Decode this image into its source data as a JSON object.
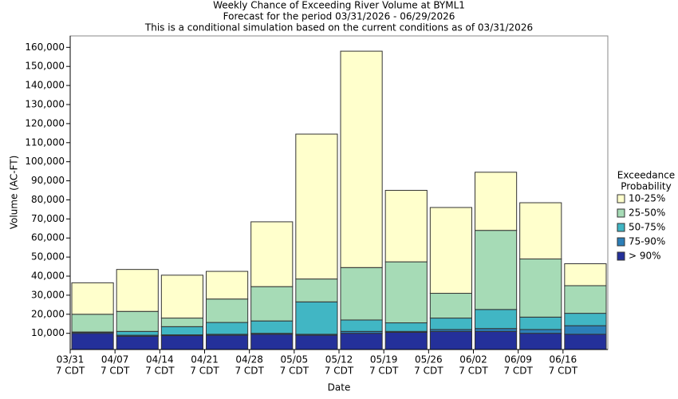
{
  "chart_data": {
    "type": "range-bar",
    "title": [
      "Weekly Chance of Exceeding River Volume at BYML1",
      "Forecast for the period 03/31/2026 - 06/29/2026",
      "This is a conditional simulation based on the current conditions as of 03/31/2026"
    ],
    "x_label": "Date",
    "y_label": "Volume (AC-FT)",
    "legend_title": [
      "Exceedance",
      "Probability"
    ],
    "legend_position": "right",
    "categories": [
      [
        "03/31",
        "7 CDT"
      ],
      [
        "04/07",
        "7 CDT"
      ],
      [
        "04/14",
        "7 CDT"
      ],
      [
        "04/21",
        "7 CDT"
      ],
      [
        "04/28",
        "7 CDT"
      ],
      [
        "05/05",
        "7 CDT"
      ],
      [
        "05/12",
        "7 CDT"
      ],
      [
        "05/19",
        "7 CDT"
      ],
      [
        "05/26",
        "7 CDT"
      ],
      [
        "06/02",
        "7 CDT"
      ],
      [
        "06/09",
        "7 CDT"
      ],
      [
        "06/16",
        "7 CDT"
      ]
    ],
    "series": [
      {
        "name": "> 90%",
        "color": "#24309a",
        "values": [
          10000,
          8500,
          8800,
          9000,
          9500,
          9000,
          10000,
          10500,
          11000,
          11000,
          10000,
          9500
        ]
      },
      {
        "name": "75-90%",
        "color": "#2c7fb8",
        "values": [
          10500,
          9000,
          9200,
          9500,
          10000,
          9500,
          11000,
          11000,
          12000,
          12500,
          12000,
          14000
        ]
      },
      {
        "name": "50-75%",
        "color": "#41b6c4",
        "values": [
          10700,
          11000,
          13500,
          15700,
          16500,
          26500,
          17000,
          15500,
          18000,
          22500,
          18500,
          20500
        ]
      },
      {
        "name": "25-50%",
        "color": "#a6dbb6",
        "values": [
          20000,
          21500,
          18000,
          28000,
          34500,
          38500,
          44500,
          47500,
          31000,
          64000,
          49000,
          35000
        ]
      },
      {
        "name": "10-25%",
        "color": "#ffffcc",
        "values": [
          36500,
          43500,
          40500,
          42500,
          68500,
          114500,
          158000,
          85000,
          76000,
          94500,
          78500,
          46500
        ]
      }
    ],
    "ylim": [
      1500,
      166000
    ],
    "yticks": [
      {
        "value": 10000,
        "label": "10,000"
      },
      {
        "value": 20000,
        "label": "20,000"
      },
      {
        "value": 30000,
        "label": "30,000"
      },
      {
        "value": 40000,
        "label": "40,000"
      },
      {
        "value": 50000,
        "label": "50,000"
      },
      {
        "value": 60000,
        "label": "60,000"
      },
      {
        "value": 70000,
        "label": "70,000"
      },
      {
        "value": 80000,
        "label": "80,000"
      },
      {
        "value": 90000,
        "label": "90,000"
      },
      {
        "value": 100000,
        "label": "100,000"
      },
      {
        "value": 110000,
        "label": "110,000"
      },
      {
        "value": 120000,
        "label": "120,000"
      },
      {
        "value": 130000,
        "label": "130,000"
      },
      {
        "value": 140000,
        "label": "140,000"
      },
      {
        "value": 150000,
        "label": "150,000"
      },
      {
        "value": 160000,
        "label": "160,000"
      }
    ]
  }
}
